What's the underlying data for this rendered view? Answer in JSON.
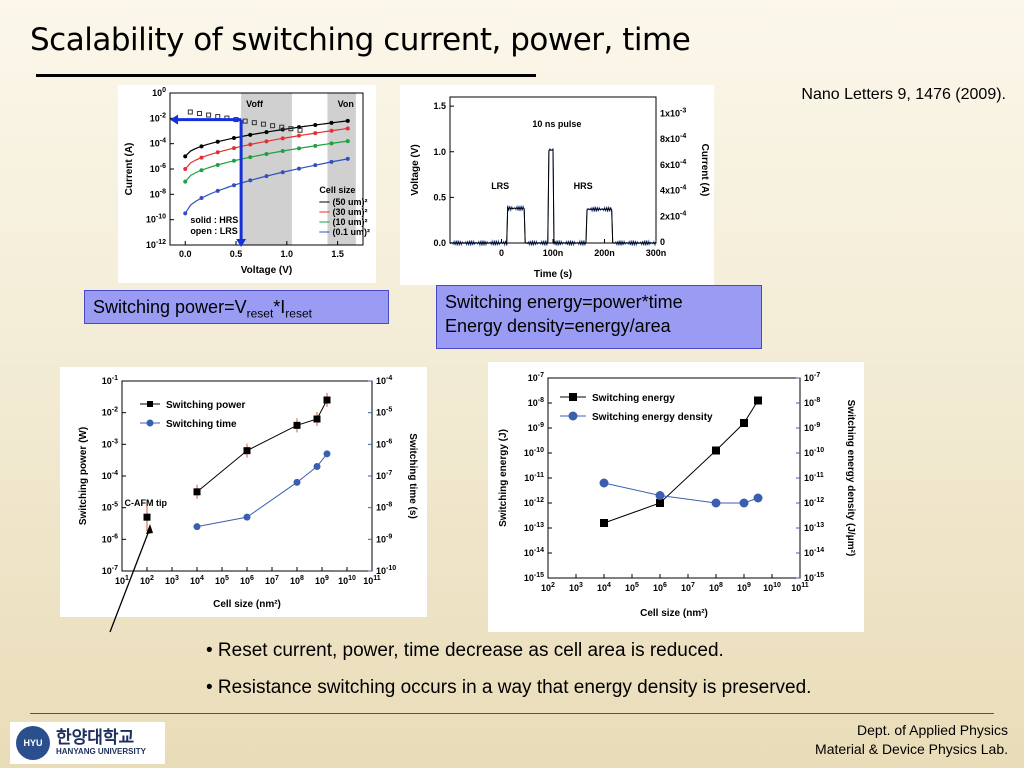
{
  "slide": {
    "title": "Scalability of switching current, power, time",
    "reference": "Nano Letters 9, 1476 (2009).",
    "callout_power_text": "Switching power=V",
    "callout_power_sub1": "reset",
    "callout_power_star": "*I",
    "callout_power_sub2": "reset",
    "callout_energy_line1": "Switching energy=power*time",
    "callout_energy_line2": "Energy density=energy/area",
    "bullets": [
      "• Reset current, power, time decrease as cell area is reduced.",
      "• Resistance switching occurs in a way that energy density is preserved."
    ],
    "footer_dept": "Dept. of Applied Physics",
    "footer_lab": "Material & Device Physics Lab.",
    "logo_korean": "한양대학교",
    "logo_english": "HANYANG UNIVERSITY",
    "colors": {
      "callout": "#9a9cf4",
      "blue_series": "#3b5fb0",
      "arrow_blue": "#1530d8"
    }
  },
  "chart_data": [
    {
      "type": "line",
      "title": "",
      "xlabel": "Voltage (V)",
      "ylabel": "Current (A)",
      "xlim": [
        -0.15,
        1.75
      ],
      "ylim": [
        "1e-12",
        "1e0"
      ],
      "x_ticks": [
        "0.0",
        "0.5",
        "1.0",
        "1.5"
      ],
      "y_ticks": [
        "10^0",
        "10^-2",
        "10^-4",
        "10^-6",
        "10^-8",
        "10^-10",
        "10^-12"
      ],
      "labels": [
        "Voff",
        "Von"
      ],
      "legend_title": "Cell size",
      "legend_placement": "bottom-right",
      "series": [
        {
          "name": "(50 um)²",
          "color": "#000000"
        },
        {
          "name": "(30 um)²",
          "color": "#e53030"
        },
        {
          "name": "(10 um)²",
          "color": "#20a040"
        },
        {
          "name": "(0.1 um)²",
          "color": "#3050c0"
        }
      ],
      "annotation": [
        "solid : HRS",
        "open : LRS"
      ]
    },
    {
      "type": "line",
      "title": "10 ns pulse",
      "xlabel": "Time (s)",
      "ylabel": "Voltage (V)",
      "ylabel_right": "Current (A)",
      "x_ticks": [
        "0",
        "100n",
        "200n",
        "300n"
      ],
      "y_ticks": [
        "0.0",
        "0.5",
        "1.0",
        "1.5"
      ],
      "y_ticks_right": [
        "0",
        "2x10^-4",
        "4x10^-4",
        "6x10^-4",
        "8x10^-4",
        "1x10^-3"
      ],
      "labels": [
        "LRS",
        "HRS"
      ]
    },
    {
      "type": "scatter",
      "xlabel": "Cell size (nm²)",
      "ylabel": "Switching power (W)",
      "ylabel_right": "Switching time (s)",
      "x_scale": "log",
      "xlim": [
        1,
        11
      ],
      "ylim_exp": [
        -7,
        -1
      ],
      "x_tick_exponents": [
        1,
        2,
        3,
        4,
        5,
        6,
        7,
        8,
        9,
        10,
        11
      ],
      "y_tick_exponents": [
        -1,
        -2,
        -3,
        -4,
        -5,
        -6,
        -7
      ],
      "y_right_tick_exponents": [
        -4,
        -5,
        -6,
        -7,
        -8,
        -9,
        -10
      ],
      "annotation": "C-AFM tip",
      "series": [
        {
          "name": "Switching power",
          "x": [
            4,
            6,
            8,
            8.8,
            9.2
          ],
          "y": [
            -4.5,
            -3.2,
            -2.4,
            -2.2,
            -1.6
          ],
          "marker": "square",
          "color": "#000000"
        },
        {
          "name": "Switching time",
          "x": [
            4,
            6,
            8,
            8.8,
            9.2
          ],
          "y": [
            -8.6,
            -8.3,
            -7.2,
            -6.7,
            -6.3
          ],
          "marker": "circle",
          "color": "#3b5fb0"
        },
        {
          "name": "C-AFM tip",
          "x": [
            2
          ],
          "y": [
            -5.3
          ],
          "marker": "square",
          "color": "#000000"
        }
      ]
    },
    {
      "type": "line",
      "xlabel": "Cell size (nm²)",
      "ylabel": "Switching energy (J)",
      "ylabel_right": "Switching energy density (J/μm²)",
      "x_scale": "log",
      "x_tick_exponents": [
        2,
        3,
        4,
        5,
        6,
        7,
        8,
        9,
        10,
        11
      ],
      "y_tick_exponents": [
        -7,
        -8,
        -9,
        -10,
        -11,
        -12,
        -13,
        -14,
        -15
      ],
      "series": [
        {
          "name": "Switching energy",
          "x": [
            4,
            6,
            8,
            9,
            9.5
          ],
          "y": [
            -12.8,
            -12,
            -9.9,
            -8.8,
            -7.9
          ],
          "marker": "square",
          "color": "#000000"
        },
        {
          "name": "Switching energy density",
          "x": [
            4,
            6,
            8,
            9,
            9.5
          ],
          "y": [
            -11.2,
            -11.7,
            -12,
            -12,
            -11.8
          ],
          "marker": "circle",
          "color": "#3b5fb0"
        }
      ]
    }
  ]
}
